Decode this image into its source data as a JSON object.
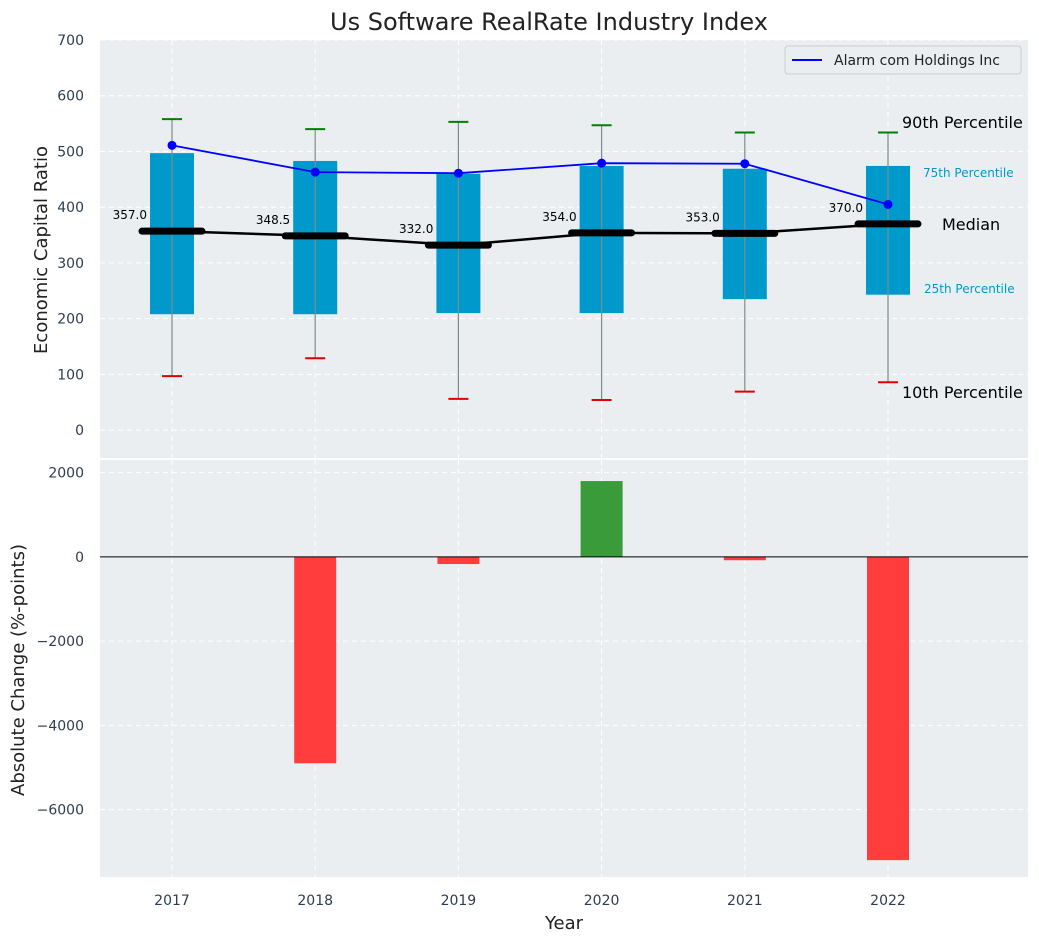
{
  "chart_data": {
    "title": "Us Software RealRate Industry Index",
    "xlabel": "Year",
    "categories": [
      "2017",
      "2018",
      "2019",
      "2020",
      "2021",
      "2022"
    ],
    "top": {
      "type": "box",
      "ylabel": "Economic Capital Ratio",
      "ylim": [
        -50,
        700
      ],
      "yticks": [
        0,
        100,
        200,
        300,
        400,
        500,
        600,
        700
      ],
      "p10": [
        97,
        129,
        56,
        54,
        69,
        86
      ],
      "p25": [
        208,
        208,
        210,
        210,
        235,
        243
      ],
      "median": [
        357.0,
        348.5,
        332.0,
        354.0,
        353.0,
        370.0
      ],
      "p75": [
        497,
        483,
        460,
        474,
        469,
        474
      ],
      "p90": [
        558,
        540,
        553,
        547,
        534,
        534
      ],
      "median_labels": [
        "357.0",
        "348.5",
        "332.0",
        "354.0",
        "353.0",
        "370.0"
      ],
      "company": {
        "name": "Alarm com Holdings Inc",
        "values": [
          511,
          463,
          461,
          479,
          478,
          405
        ]
      },
      "annotations": {
        "p90": "90th Percentile",
        "p75": "75th Percentile",
        "median": "Median",
        "p25": "25th Percentile",
        "p10": "10th Percentile"
      }
    },
    "bottom": {
      "type": "bar",
      "ylabel": "Absolute Change (%-points)",
      "ylim": [
        -7600,
        2300
      ],
      "yticks": [
        2000,
        0,
        -2000,
        -4000,
        -6000
      ],
      "ytick_labels": [
        "2000",
        "0",
        "−2000",
        "−4000",
        "−6000"
      ],
      "values": [
        0,
        -4900,
        -170,
        1800,
        -80,
        -7200
      ]
    },
    "colors": {
      "box": "#0099cc",
      "median": "#000000",
      "company": "#0000ff",
      "p90_cap": "#008000",
      "p10_cap": "#e00000",
      "positive": "#3a9b3a",
      "negative": "#ff3d3d",
      "panel_bg": "#eaeef0",
      "grid": "#ffffff"
    }
  }
}
